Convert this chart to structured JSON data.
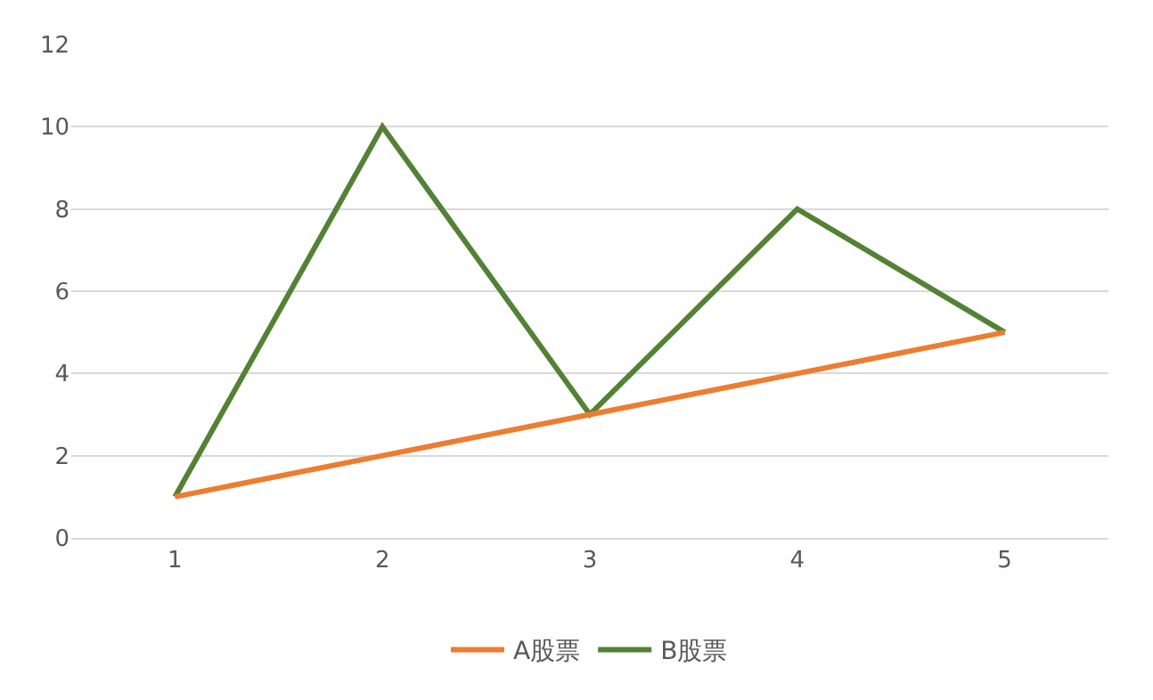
{
  "chart_data": {
    "type": "line",
    "categories": [
      "1",
      "2",
      "3",
      "4",
      "5"
    ],
    "series": [
      {
        "name": "A股票",
        "color": "#ed7d31",
        "values": [
          1,
          2,
          3,
          4,
          5
        ]
      },
      {
        "name": "B股票",
        "color": "#548235",
        "values": [
          1,
          10,
          3,
          8,
          5
        ]
      }
    ],
    "ylim": [
      0,
      12
    ],
    "yticks": [
      0,
      2,
      4,
      6,
      8,
      10,
      12
    ],
    "grid": "y",
    "legend": "bottom",
    "marker": "none",
    "line_style": "solid"
  }
}
